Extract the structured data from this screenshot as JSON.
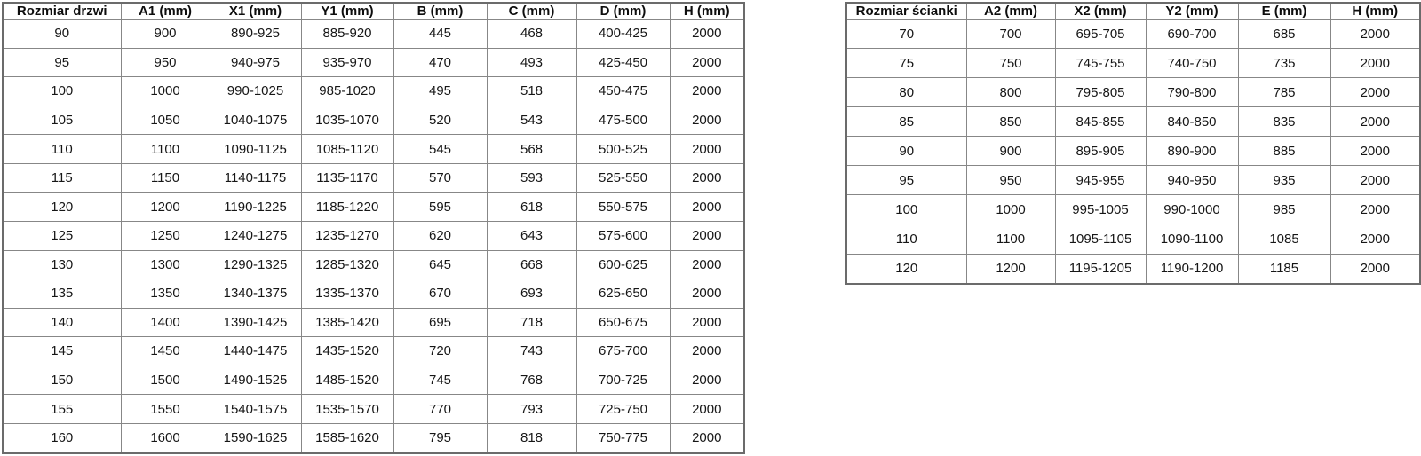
{
  "door_table": {
    "headers": [
      "Rozmiar drzwi",
      "A1 (mm)",
      "X1 (mm)",
      "Y1 (mm)",
      "B (mm)",
      "C (mm)",
      "D (mm)",
      "H (mm)"
    ],
    "rows": [
      [
        "90",
        "900",
        "890-925",
        "885-920",
        "445",
        "468",
        "400-425",
        "2000"
      ],
      [
        "95",
        "950",
        "940-975",
        "935-970",
        "470",
        "493",
        "425-450",
        "2000"
      ],
      [
        "100",
        "1000",
        "990-1025",
        "985-1020",
        "495",
        "518",
        "450-475",
        "2000"
      ],
      [
        "105",
        "1050",
        "1040-1075",
        "1035-1070",
        "520",
        "543",
        "475-500",
        "2000"
      ],
      [
        "110",
        "1100",
        "1090-1125",
        "1085-1120",
        "545",
        "568",
        "500-525",
        "2000"
      ],
      [
        "115",
        "1150",
        "1140-1175",
        "1135-1170",
        "570",
        "593",
        "525-550",
        "2000"
      ],
      [
        "120",
        "1200",
        "1190-1225",
        "1185-1220",
        "595",
        "618",
        "550-575",
        "2000"
      ],
      [
        "125",
        "1250",
        "1240-1275",
        "1235-1270",
        "620",
        "643",
        "575-600",
        "2000"
      ],
      [
        "130",
        "1300",
        "1290-1325",
        "1285-1320",
        "645",
        "668",
        "600-625",
        "2000"
      ],
      [
        "135",
        "1350",
        "1340-1375",
        "1335-1370",
        "670",
        "693",
        "625-650",
        "2000"
      ],
      [
        "140",
        "1400",
        "1390-1425",
        "1385-1420",
        "695",
        "718",
        "650-675",
        "2000"
      ],
      [
        "145",
        "1450",
        "1440-1475",
        "1435-1520",
        "720",
        "743",
        "675-700",
        "2000"
      ],
      [
        "150",
        "1500",
        "1490-1525",
        "1485-1520",
        "745",
        "768",
        "700-725",
        "2000"
      ],
      [
        "155",
        "1550",
        "1540-1575",
        "1535-1570",
        "770",
        "793",
        "725-750",
        "2000"
      ],
      [
        "160",
        "1600",
        "1590-1625",
        "1585-1620",
        "795",
        "818",
        "750-775",
        "2000"
      ]
    ]
  },
  "wall_table": {
    "headers": [
      "Rozmiar ścianki",
      "A2 (mm)",
      "X2 (mm)",
      "Y2 (mm)",
      "E (mm)",
      "H (mm)"
    ],
    "rows": [
      [
        "70",
        "700",
        "695-705",
        "690-700",
        "685",
        "2000"
      ],
      [
        "75",
        "750",
        "745-755",
        "740-750",
        "735",
        "2000"
      ],
      [
        "80",
        "800",
        "795-805",
        "790-800",
        "785",
        "2000"
      ],
      [
        "85",
        "850",
        "845-855",
        "840-850",
        "835",
        "2000"
      ],
      [
        "90",
        "900",
        "895-905",
        "890-900",
        "885",
        "2000"
      ],
      [
        "95",
        "950",
        "945-955",
        "940-950",
        "935",
        "2000"
      ],
      [
        "100",
        "1000",
        "995-1005",
        "990-1000",
        "985",
        "2000"
      ],
      [
        "110",
        "1100",
        "1095-1105",
        "1090-1100",
        "1085",
        "2000"
      ],
      [
        "120",
        "1200",
        "1195-1205",
        "1190-1200",
        "1185",
        "2000"
      ]
    ]
  }
}
